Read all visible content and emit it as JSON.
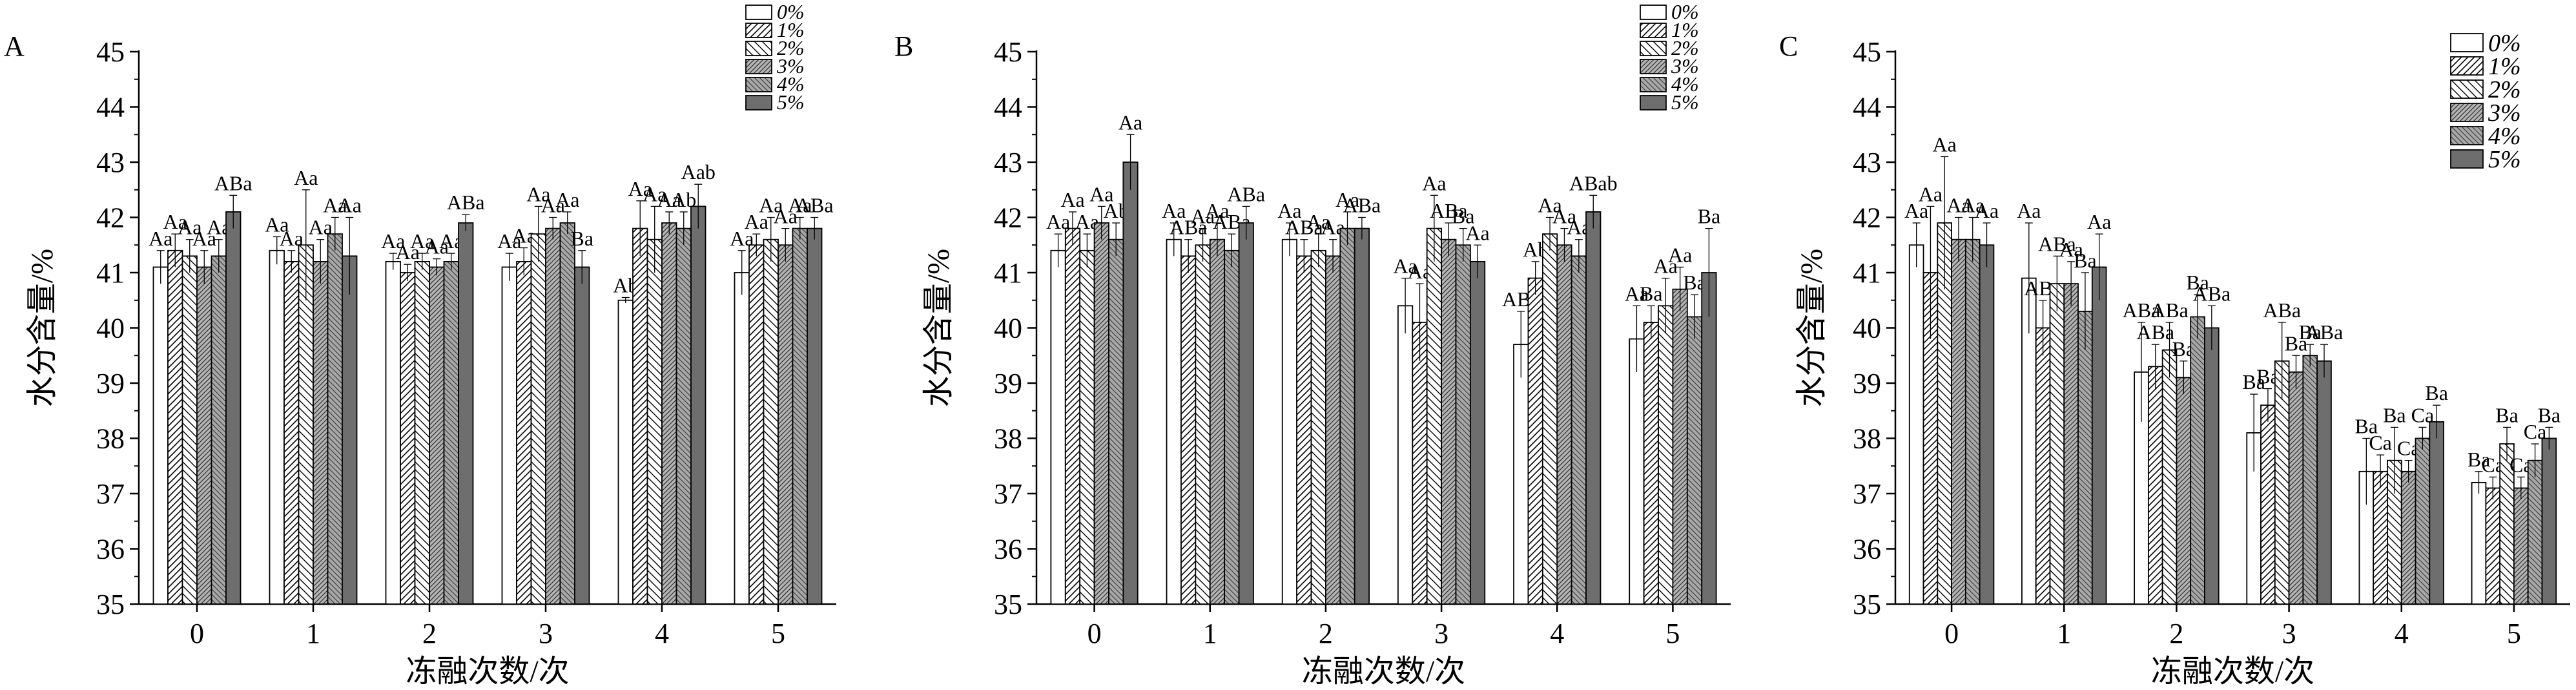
{
  "legend_items": [
    "0%",
    "1%",
    "2%",
    "3%",
    "4%",
    "5%"
  ],
  "categories": [
    "0",
    "1",
    "2",
    "3",
    "4",
    "5"
  ],
  "chart_data": [
    {
      "panel_label": "A",
      "type": "bar",
      "xlabel": "冻融次数/次",
      "ylabel": "水分含量/%",
      "ylim": [
        35,
        45
      ],
      "yticks": [
        35,
        36,
        37,
        38,
        39,
        40,
        41,
        42,
        43,
        44,
        45
      ],
      "legend_position": "top-right",
      "categories": [
        "0",
        "1",
        "2",
        "3",
        "4",
        "5"
      ],
      "series": [
        {
          "name": "0%",
          "values": [
            41.1,
            41.4,
            41.2,
            41.1,
            40.5,
            41.0
          ],
          "errors": [
            0.3,
            0.25,
            0.15,
            0.25,
            0.05,
            0.4
          ],
          "labels": [
            "Aa",
            "Aa",
            "Aa",
            "Aa",
            "Ab",
            "Aa"
          ]
        },
        {
          "name": "1%",
          "values": [
            41.4,
            41.2,
            41.0,
            41.2,
            41.8,
            41.5
          ],
          "errors": [
            0.3,
            0.2,
            0.15,
            0.25,
            0.5,
            0.2
          ],
          "labels": [
            "Aa",
            "Aa",
            "Aa",
            "Aa",
            "Aa",
            "Aa"
          ]
        },
        {
          "name": "2%",
          "values": [
            41.3,
            41.5,
            41.2,
            41.7,
            41.6,
            41.6
          ],
          "errors": [
            0.3,
            1.0,
            0.15,
            0.5,
            0.6,
            0.4
          ],
          "labels": [
            "Aa",
            "Aa",
            "Aa",
            "Aa",
            "Aa",
            "Aa"
          ]
        },
        {
          "name": "3%",
          "values": [
            41.1,
            41.2,
            41.1,
            41.8,
            41.9,
            41.5
          ],
          "errors": [
            0.3,
            0.4,
            0.15,
            0.2,
            0.2,
            0.3
          ],
          "labels": [
            "Aa",
            "Aa",
            "Aa",
            "Aa",
            "Aa",
            "Aa"
          ]
        },
        {
          "name": "4%",
          "values": [
            41.3,
            41.7,
            41.2,
            41.9,
            41.8,
            41.8
          ],
          "errors": [
            0.3,
            0.3,
            0.15,
            0.2,
            0.3,
            0.2
          ],
          "labels": [
            "Aa",
            "Aa",
            "Aa",
            "Aa",
            "Ab",
            "Aa"
          ]
        },
        {
          "name": "5%",
          "values": [
            42.1,
            41.3,
            41.9,
            41.1,
            42.2,
            41.8
          ],
          "errors": [
            0.3,
            0.7,
            0.15,
            0.3,
            0.4,
            0.2
          ],
          "labels": [
            "ABa",
            "Aa",
            "ABa",
            "Ba",
            "Aab",
            "ABa"
          ]
        }
      ]
    },
    {
      "panel_label": "B",
      "type": "bar",
      "xlabel": "冻融次数/次",
      "ylabel": "水分含量/%",
      "ylim": [
        35,
        45
      ],
      "yticks": [
        35,
        36,
        37,
        38,
        39,
        40,
        41,
        42,
        43,
        44,
        45
      ],
      "legend_position": "top-right",
      "categories": [
        "0",
        "1",
        "2",
        "3",
        "4",
        "5"
      ],
      "series": [
        {
          "name": "0%",
          "values": [
            41.4,
            41.6,
            41.6,
            40.4,
            39.7,
            39.8
          ],
          "errors": [
            0.3,
            0.3,
            0.3,
            0.5,
            0.6,
            0.6
          ],
          "labels": [
            "Aa",
            "Aa",
            "Aa",
            "Aa",
            "ABa",
            "Aa"
          ]
        },
        {
          "name": "1%",
          "values": [
            41.8,
            41.3,
            41.3,
            40.1,
            40.9,
            40.1
          ],
          "errors": [
            0.3,
            0.3,
            0.3,
            0.7,
            0.3,
            0.3
          ],
          "labels": [
            "Aa",
            "ABa",
            "ABa",
            "Aa",
            "Ab",
            "Ba"
          ]
        },
        {
          "name": "2%",
          "values": [
            41.4,
            41.5,
            41.4,
            41.8,
            41.7,
            40.4
          ],
          "errors": [
            0.3,
            0.3,
            0.3,
            0.6,
            0.3,
            0.5
          ],
          "labels": [
            "Aa",
            "Aa",
            "Aa",
            "Aa",
            "Aa",
            "Aa"
          ]
        },
        {
          "name": "3%",
          "values": [
            41.9,
            41.6,
            41.3,
            41.6,
            41.5,
            40.7
          ],
          "errors": [
            0.3,
            0.3,
            0.3,
            0.3,
            0.3,
            0.4
          ],
          "labels": [
            "Aa",
            "Aa",
            "Aa",
            "ABa",
            "Aa",
            "Aa"
          ]
        },
        {
          "name": "4%",
          "values": [
            41.6,
            41.4,
            41.8,
            41.5,
            41.3,
            40.2
          ],
          "errors": [
            0.3,
            0.3,
            0.3,
            0.3,
            0.3,
            0.4
          ],
          "labels": [
            "Ab",
            "ABa",
            "Aa",
            "Ba",
            "Aa",
            "Ba"
          ]
        },
        {
          "name": "5%",
          "values": [
            43.0,
            41.9,
            41.8,
            41.2,
            42.1,
            41.0
          ],
          "errors": [
            0.5,
            0.3,
            0.2,
            0.3,
            0.3,
            0.8
          ],
          "labels": [
            "Aa",
            "ABa",
            "ABa",
            "Aa",
            "ABab",
            "Ba"
          ]
        }
      ]
    },
    {
      "panel_label": "C",
      "type": "bar",
      "xlabel": "冻融次数/次",
      "ylabel": "水分含量/%",
      "ylim": [
        35,
        45
      ],
      "yticks": [
        35,
        36,
        37,
        38,
        39,
        40,
        41,
        42,
        43,
        44,
        45
      ],
      "legend_position": "top-right",
      "categories": [
        "0",
        "1",
        "2",
        "3",
        "4",
        "5"
      ],
      "series": [
        {
          "name": "0%",
          "values": [
            41.5,
            40.9,
            39.2,
            38.1,
            37.4,
            37.2
          ],
          "errors": [
            0.4,
            1.0,
            0.9,
            0.7,
            0.6,
            0.2
          ],
          "labels": [
            "Aa",
            "Aa",
            "ABa",
            "Ba",
            "Ba",
            "Ba"
          ]
        },
        {
          "name": "1%",
          "values": [
            41.0,
            40.0,
            39.3,
            38.6,
            37.4,
            37.1
          ],
          "errors": [
            1.2,
            0.5,
            0.4,
            0.3,
            0.3,
            0.2
          ],
          "labels": [
            "Aa",
            "ABa",
            "ABa",
            "Ba",
            "Ca",
            "Ca"
          ]
        },
        {
          "name": "2%",
          "values": [
            41.9,
            40.8,
            39.6,
            39.4,
            37.6,
            37.9
          ],
          "errors": [
            1.2,
            0.5,
            0.5,
            0.7,
            0.6,
            0.3
          ],
          "labels": [
            "Aa",
            "ABa",
            "ABa",
            "ABa",
            "Ba",
            "Ba"
          ]
        },
        {
          "name": "3%",
          "values": [
            41.6,
            40.8,
            39.1,
            39.2,
            37.4,
            37.1
          ],
          "errors": [
            0.4,
            0.4,
            0.3,
            0.3,
            0.2,
            0.2
          ],
          "labels": [
            "Aa",
            "Aa",
            "Ba",
            "Ba",
            "Ca",
            "Ca"
          ]
        },
        {
          "name": "4%",
          "values": [
            41.6,
            40.3,
            40.2,
            39.5,
            38.0,
            37.6
          ],
          "errors": [
            0.4,
            0.7,
            0.4,
            0.2,
            0.2,
            0.3
          ],
          "labels": [
            "Aa",
            "Ba",
            "Ba",
            "Ba",
            "Ca",
            "Ca"
          ]
        },
        {
          "name": "5%",
          "values": [
            41.5,
            41.1,
            40.0,
            39.4,
            38.3,
            38.0
          ],
          "errors": [
            0.4,
            0.6,
            0.4,
            0.3,
            0.3,
            0.2
          ],
          "labels": [
            "Aa",
            "Aa",
            "ABa",
            "ABa",
            "Ba",
            "Ba"
          ]
        }
      ]
    }
  ]
}
